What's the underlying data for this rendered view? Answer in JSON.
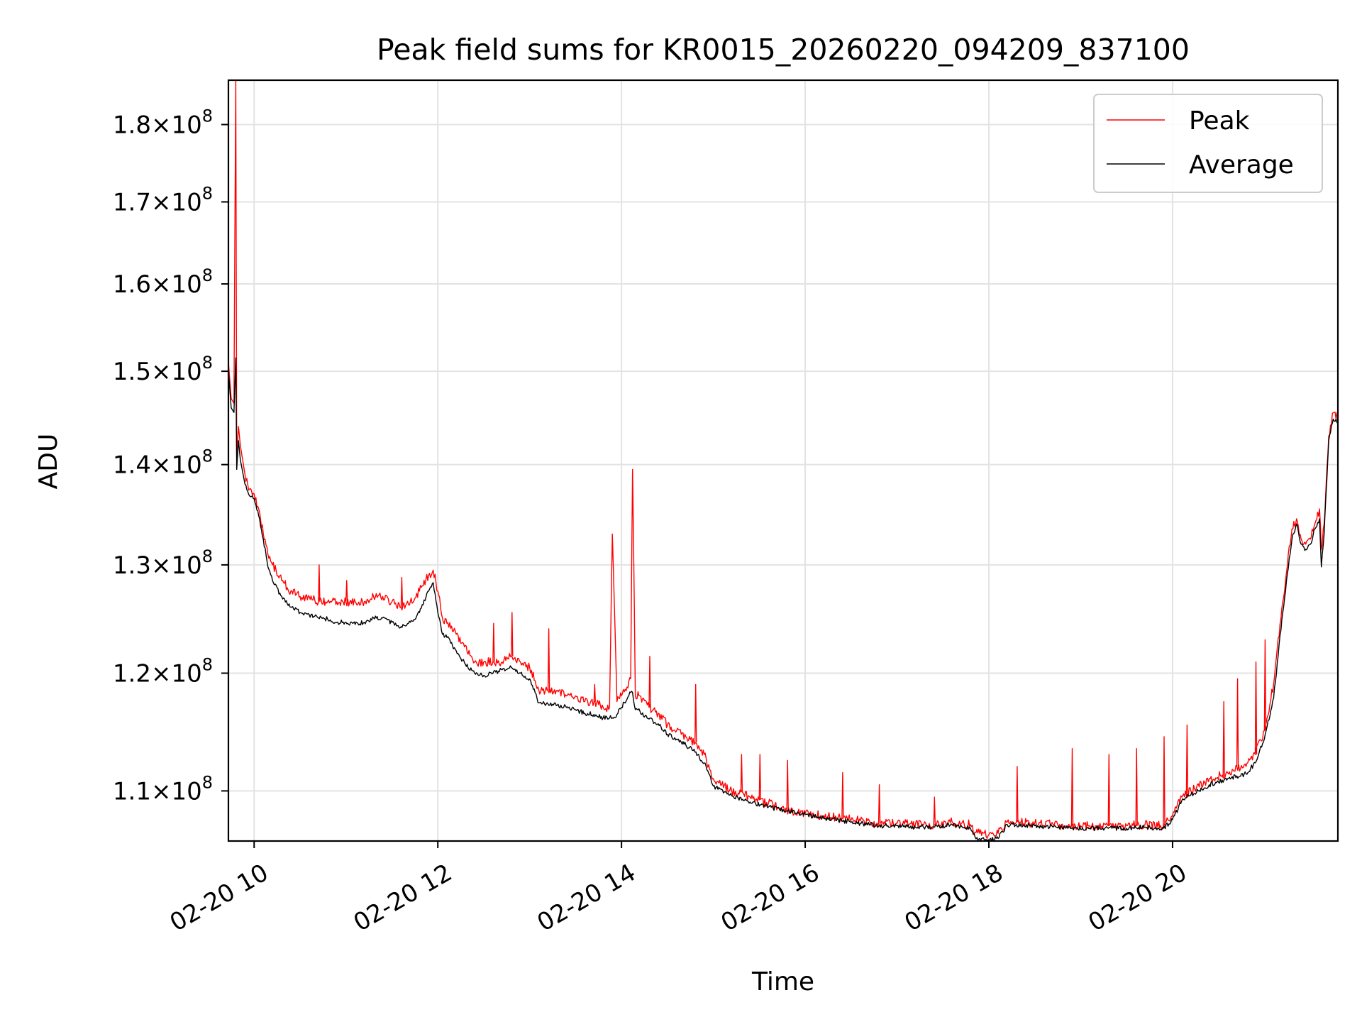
{
  "chart_data": {
    "type": "line",
    "title": "Peak field sums for KR0015_20260220_094209_837100",
    "xlabel": "Time",
    "ylabel": "ADU",
    "y_scale": "log",
    "xlim": [
      9.72,
      21.8
    ],
    "ylim": [
      106000000,
      186000000
    ],
    "grid": true,
    "legend_position": "top-right",
    "x_ticks": [
      {
        "value": 10,
        "label": "02-20 10"
      },
      {
        "value": 12,
        "label": "02-20 12"
      },
      {
        "value": 14,
        "label": "02-20 14"
      },
      {
        "value": 16,
        "label": "02-20 16"
      },
      {
        "value": 18,
        "label": "02-20 18"
      },
      {
        "value": 20,
        "label": "02-20 20"
      }
    ],
    "y_ticks": [
      {
        "value": 110000000,
        "mantissa": "1.1",
        "base": "10",
        "exp": "8"
      },
      {
        "value": 120000000,
        "mantissa": "1.2",
        "base": "10",
        "exp": "8"
      },
      {
        "value": 130000000,
        "mantissa": "1.3",
        "base": "10",
        "exp": "8"
      },
      {
        "value": 140000000,
        "mantissa": "1.4",
        "base": "10",
        "exp": "8"
      },
      {
        "value": 150000000,
        "mantissa": "1.5",
        "base": "10",
        "exp": "8"
      },
      {
        "value": 160000000,
        "mantissa": "1.6",
        "base": "10",
        "exp": "8"
      },
      {
        "value": 170000000,
        "mantissa": "1.7",
        "base": "10",
        "exp": "8"
      },
      {
        "value": 180000000,
        "mantissa": "1.8",
        "base": "10",
        "exp": "8"
      }
    ],
    "series": [
      {
        "name": "Peak",
        "color": "#ff0000",
        "x": [
          9.72,
          9.75,
          9.78,
          9.8,
          9.81,
          9.83,
          9.85,
          9.9,
          9.95,
          10.0,
          10.05,
          10.1,
          10.15,
          10.2,
          10.3,
          10.4,
          10.5,
          10.6,
          10.7,
          10.8,
          10.9,
          11.0,
          11.1,
          11.2,
          11.3,
          11.4,
          11.5,
          11.6,
          11.7,
          11.8,
          11.9,
          11.95,
          12.0,
          12.05,
          12.1,
          12.2,
          12.3,
          12.4,
          12.5,
          12.6,
          12.7,
          12.8,
          12.9,
          13.0,
          13.1,
          13.2,
          13.3,
          13.4,
          13.5,
          13.6,
          13.7,
          13.8,
          13.87,
          13.9,
          13.95,
          14.0,
          14.1,
          14.12,
          14.15,
          14.2,
          14.3,
          14.4,
          14.5,
          14.6,
          14.7,
          14.8,
          14.9,
          15.0,
          15.2,
          15.4,
          15.6,
          15.8,
          16.0,
          16.2,
          16.4,
          16.6,
          16.8,
          17.0,
          17.2,
          17.4,
          17.6,
          17.8,
          17.85,
          17.9,
          18.0,
          18.1,
          18.2,
          18.3,
          18.5,
          18.7,
          18.9,
          19.1,
          19.3,
          19.5,
          19.7,
          19.9,
          20.0,
          20.1,
          20.2,
          20.4,
          20.6,
          20.8,
          20.9,
          21.0,
          21.1,
          21.2,
          21.3,
          21.35,
          21.4,
          21.45,
          21.5,
          21.55,
          21.6,
          21.62,
          21.65,
          21.7,
          21.75,
          21.8
        ],
        "y": [
          151000000,
          147000000,
          146500000,
          186000000,
          141000000,
          144000000,
          142000000,
          139000000,
          137500000,
          137000000,
          135500000,
          133000000,
          131000000,
          130000000,
          128500000,
          127500000,
          127000000,
          127000000,
          126500000,
          126500000,
          126500000,
          126500000,
          126500000,
          126500000,
          127000000,
          127000000,
          126500000,
          126000000,
          126500000,
          127500000,
          129000000,
          129500000,
          127500000,
          125000000,
          124500000,
          123500000,
          122500000,
          121000000,
          121000000,
          121000000,
          121000000,
          121500000,
          121000000,
          120500000,
          118500000,
          118500000,
          118500000,
          118000000,
          118000000,
          117500000,
          117500000,
          117000000,
          117000000,
          133000000,
          117500000,
          118000000,
          119500000,
          139500000,
          118000000,
          118000000,
          117000000,
          116500000,
          115500000,
          115000000,
          114500000,
          114000000,
          113000000,
          111000000,
          110000000,
          109500000,
          109000000,
          108500000,
          108200000,
          108000000,
          107800000,
          107600000,
          107400000,
          107400000,
          107300000,
          107300000,
          107500000,
          107300000,
          106700000,
          106600000,
          106500000,
          106600000,
          107500000,
          107500000,
          107400000,
          107300000,
          107200000,
          107200000,
          107200000,
          107200000,
          107300000,
          107200000,
          108000000,
          109500000,
          110000000,
          111000000,
          111500000,
          112000000,
          113000000,
          115000000,
          119000000,
          126500000,
          133500000,
          134500000,
          132500000,
          132000000,
          132500000,
          134000000,
          135500000,
          131500000,
          134000000,
          143000000,
          145500000,
          145000000
        ],
        "spikes": [
          [
            10.7,
            130000000
          ],
          [
            11.0,
            128500000
          ],
          [
            11.6,
            128800000
          ],
          [
            12.6,
            124500000
          ],
          [
            12.8,
            125500000
          ],
          [
            13.2,
            124000000
          ],
          [
            13.7,
            119000000
          ],
          [
            14.3,
            121500000
          ],
          [
            14.8,
            119000000
          ],
          [
            15.3,
            113000000
          ],
          [
            15.5,
            113000000
          ],
          [
            15.8,
            112500000
          ],
          [
            16.4,
            111500000
          ],
          [
            16.8,
            110500000
          ],
          [
            17.4,
            109500000
          ],
          [
            18.3,
            112000000
          ],
          [
            18.9,
            113500000
          ],
          [
            19.3,
            113000000
          ],
          [
            19.6,
            113500000
          ],
          [
            19.9,
            114500000
          ],
          [
            20.15,
            115500000
          ],
          [
            20.55,
            117500000
          ],
          [
            20.7,
            119500000
          ],
          [
            20.9,
            121000000
          ],
          [
            21.0,
            123000000
          ]
        ]
      },
      {
        "name": "Average",
        "color": "#000000",
        "x": [
          9.72,
          9.75,
          9.78,
          9.8,
          9.81,
          9.83,
          9.85,
          9.9,
          9.95,
          10.0,
          10.05,
          10.1,
          10.15,
          10.2,
          10.3,
          10.4,
          10.5,
          10.6,
          10.7,
          10.8,
          10.9,
          11.0,
          11.1,
          11.2,
          11.3,
          11.4,
          11.5,
          11.6,
          11.7,
          11.8,
          11.9,
          11.95,
          12.0,
          12.05,
          12.1,
          12.2,
          12.3,
          12.4,
          12.5,
          12.6,
          12.7,
          12.8,
          12.9,
          13.0,
          13.1,
          13.2,
          13.3,
          13.4,
          13.5,
          13.6,
          13.7,
          13.8,
          13.87,
          13.9,
          13.95,
          14.0,
          14.1,
          14.12,
          14.15,
          14.2,
          14.3,
          14.4,
          14.5,
          14.6,
          14.7,
          14.8,
          14.9,
          15.0,
          15.2,
          15.4,
          15.6,
          15.8,
          16.0,
          16.2,
          16.4,
          16.6,
          16.8,
          17.0,
          17.2,
          17.4,
          17.6,
          17.8,
          17.85,
          17.9,
          18.0,
          18.1,
          18.2,
          18.3,
          18.5,
          18.7,
          18.9,
          19.1,
          19.3,
          19.5,
          19.7,
          19.9,
          20.0,
          20.1,
          20.2,
          20.4,
          20.6,
          20.8,
          20.9,
          21.0,
          21.1,
          21.2,
          21.3,
          21.35,
          21.4,
          21.45,
          21.5,
          21.55,
          21.6,
          21.62,
          21.65,
          21.7,
          21.75,
          21.8
        ],
        "y": [
          150000000,
          146000000,
          145500000,
          151500000,
          139500000,
          142500000,
          140500000,
          138000000,
          136800000,
          136500000,
          134800000,
          132500000,
          129800000,
          128500000,
          127000000,
          126000000,
          125500000,
          125300000,
          125000000,
          124900000,
          124600000,
          124600000,
          124400000,
          124600000,
          125000000,
          125000000,
          124600000,
          124200000,
          124600000,
          125500000,
          127500000,
          128300000,
          125500000,
          123500000,
          123200000,
          122000000,
          120800000,
          120000000,
          119800000,
          120000000,
          120300000,
          120500000,
          120000000,
          119500000,
          117400000,
          117300000,
          117200000,
          117000000,
          116800000,
          116500000,
          116400000,
          116100000,
          116100000,
          116100000,
          116400000,
          117000000,
          118300000,
          118300000,
          116800000,
          116700000,
          116000000,
          115600000,
          114700000,
          114300000,
          113800000,
          113200000,
          112300000,
          110400000,
          109600000,
          109100000,
          108700000,
          108400000,
          108100000,
          107800000,
          107600000,
          107400000,
          107200000,
          107200000,
          107100000,
          107100000,
          107300000,
          107000000,
          106300000,
          106200000,
          106100000,
          106200000,
          107300000,
          107300000,
          107200000,
          107100000,
          107000000,
          107000000,
          107000000,
          107000000,
          107100000,
          107000000,
          107700000,
          109200000,
          109700000,
          110500000,
          111000000,
          111400000,
          112300000,
          114300000,
          117800000,
          125500000,
          132500000,
          134000000,
          132000000,
          131500000,
          132000000,
          133500000,
          134500000,
          129800000,
          133000000,
          142500000,
          144800000,
          144500000
        ],
        "spikes": []
      }
    ]
  }
}
